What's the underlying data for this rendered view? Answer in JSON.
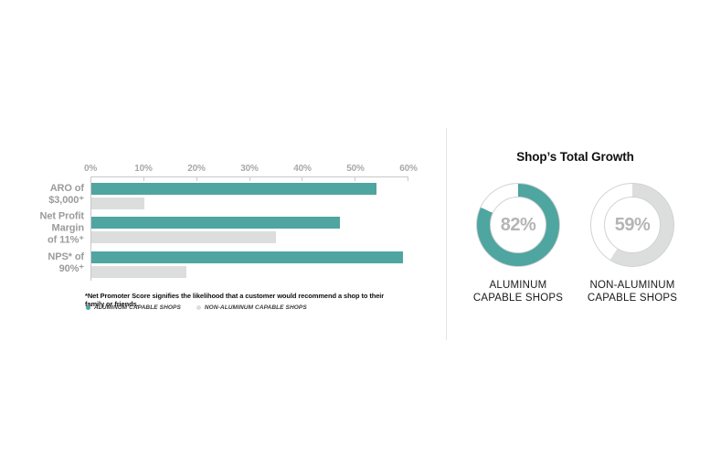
{
  "colors": {
    "teal": "#4FA5A0",
    "light_gray": "#DCDDDD",
    "axis": "#C8C8C8",
    "category_label": "#9B9B9B",
    "tick_label": "#A9A9A9",
    "donut_value_text": "#B5B5B5",
    "donut_outline": "#D2D2D2",
    "divider": "#E4E4E4"
  },
  "footnote": "*Net Promoter Score signifies the likelihood that a customer would recommend a shop to their family or friends.",
  "legend": {
    "items": [
      {
        "label": "ALUMINUM CAPABLE SHOPS",
        "color": "#4FA5A0"
      },
      {
        "label": "NON-ALUMINUM CAPABLE SHOPS",
        "color": "#DCDDDD"
      }
    ]
  },
  "growth": {
    "title": "Shop’s Total Growth"
  },
  "chart_data": [
    {
      "type": "bar",
      "orientation": "horizontal",
      "title": "",
      "xlabel": "",
      "ylabel": "",
      "axis": {
        "min": 0,
        "max": 60,
        "ticks": [
          "0%",
          "10%",
          "20%",
          "30%",
          "40%",
          "50%",
          "60%"
        ],
        "grid": false
      },
      "categories": [
        "ARO of\n$3,000⁺",
        "Net Profit\nMargin\nof 11%⁺",
        "NPS* of\n90%⁺"
      ],
      "series": [
        {
          "name": "ALUMINUM CAPABLE SHOPS",
          "color": "#4FA5A0",
          "values": [
            54,
            47,
            59
          ]
        },
        {
          "name": "NON-ALUMINUM CAPABLE SHOPS",
          "color": "#DCDDDD",
          "values": [
            10,
            35,
            18
          ]
        }
      ],
      "legend_position": "bottom"
    },
    {
      "type": "donut",
      "title": "Shop’s Total Growth",
      "slices": [
        {
          "label": "ALUMINUM\nCAPABLE SHOPS",
          "value": 82,
          "display": "82%",
          "color": "#4FA5A0"
        },
        {
          "label": "NON-ALUMINUM\nCAPABLE SHOPS",
          "value": 59,
          "display": "59%",
          "color": "#DCDDDD"
        }
      ]
    }
  ]
}
